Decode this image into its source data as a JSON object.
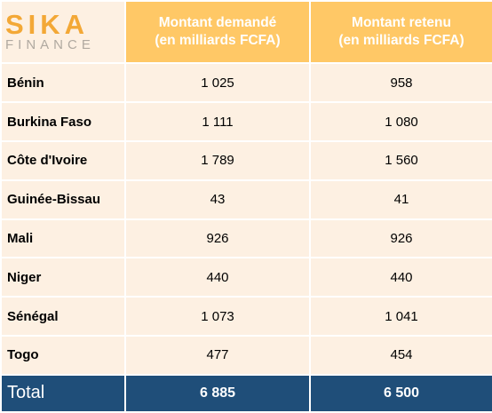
{
  "logo": {
    "line1": "SIKA",
    "line2": "FINANCE"
  },
  "headers": {
    "requested": {
      "line1": "Montant demandé",
      "line2": "(en milliards FCFA)"
    },
    "retained": {
      "line1": "Montant retenu",
      "line2": "(en milliards FCFA)"
    }
  },
  "rows": [
    {
      "country": "Bénin",
      "requested": "1 025",
      "retained": "958"
    },
    {
      "country": "Burkina Faso",
      "requested": "1 111",
      "retained": "1 080"
    },
    {
      "country": "Côte d'Ivoire",
      "requested": "1 789",
      "retained": "1 560"
    },
    {
      "country": "Guinée-Bissau",
      "requested": "43",
      "retained": "41"
    },
    {
      "country": "Mali",
      "requested": "926",
      "retained": "926"
    },
    {
      "country": "Niger",
      "requested": "440",
      "retained": "440"
    },
    {
      "country": "Sénégal",
      "requested": "1 073",
      "retained": "1 041"
    },
    {
      "country": "Togo",
      "requested": "477",
      "retained": "454"
    }
  ],
  "total": {
    "label": "Total",
    "requested": "6 885",
    "retained": "6 500"
  },
  "colors": {
    "header_bg": "#ffc866",
    "row_bg": "#fdf0e2",
    "total_bg": "#1f4e79",
    "logo_orange": "#f3a836",
    "logo_gray": "#b0a9a0"
  }
}
